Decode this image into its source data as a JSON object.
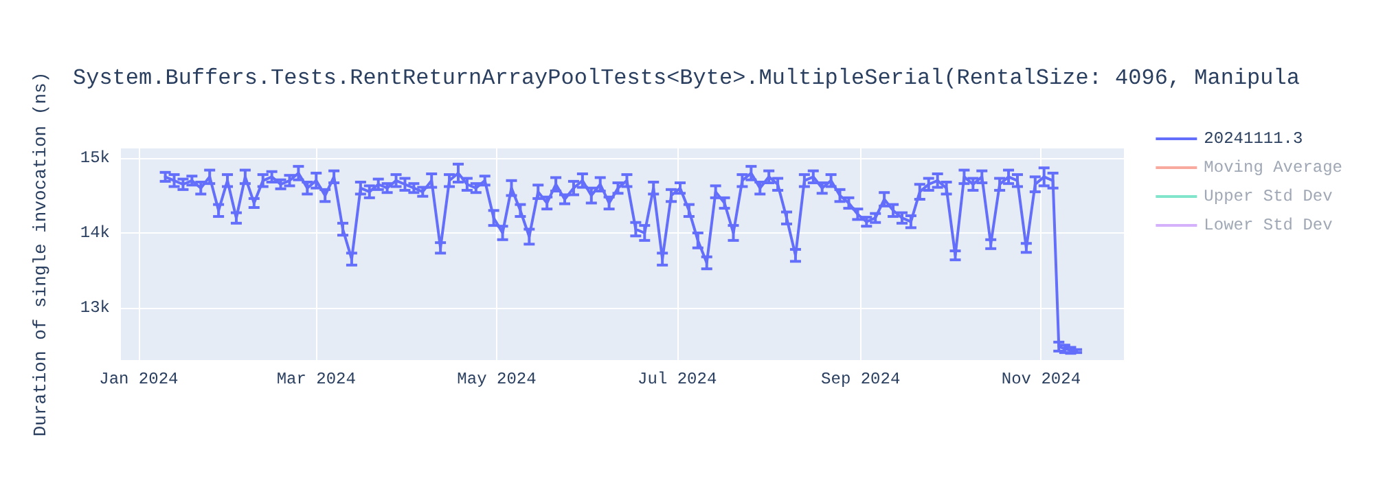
{
  "chart_data": {
    "type": "line",
    "title": "System.Buffers.Tests.RentReturnArrayPoolTests<Byte>.MultipleSerial(RentalSize: 4096, Manipula",
    "ylabel": "Duration of single invocation (ns)",
    "x": [
      "2024-01-10",
      "2024-01-13",
      "2024-01-16",
      "2024-01-19",
      "2024-01-22",
      "2024-01-25",
      "2024-01-28",
      "2024-01-31",
      "2024-02-03",
      "2024-02-06",
      "2024-02-09",
      "2024-02-12",
      "2024-02-15",
      "2024-02-18",
      "2024-02-21",
      "2024-02-24",
      "2024-02-27",
      "2024-03-01",
      "2024-03-04",
      "2024-03-07",
      "2024-03-10",
      "2024-03-13",
      "2024-03-16",
      "2024-03-19",
      "2024-03-22",
      "2024-03-25",
      "2024-03-28",
      "2024-03-31",
      "2024-04-03",
      "2024-04-06",
      "2024-04-09",
      "2024-04-12",
      "2024-04-15",
      "2024-04-18",
      "2024-04-21",
      "2024-04-24",
      "2024-04-27",
      "2024-04-30",
      "2024-05-03",
      "2024-05-06",
      "2024-05-09",
      "2024-05-12",
      "2024-05-15",
      "2024-05-18",
      "2024-05-21",
      "2024-05-24",
      "2024-05-27",
      "2024-05-30",
      "2024-06-02",
      "2024-06-05",
      "2024-06-08",
      "2024-06-11",
      "2024-06-14",
      "2024-06-17",
      "2024-06-20",
      "2024-06-23",
      "2024-06-26",
      "2024-06-29",
      "2024-07-02",
      "2024-07-05",
      "2024-07-08",
      "2024-07-11",
      "2024-07-14",
      "2024-07-17",
      "2024-07-20",
      "2024-07-23",
      "2024-07-26",
      "2024-07-29",
      "2024-08-01",
      "2024-08-04",
      "2024-08-07",
      "2024-08-10",
      "2024-08-13",
      "2024-08-16",
      "2024-08-19",
      "2024-08-22",
      "2024-08-25",
      "2024-08-28",
      "2024-08-31",
      "2024-09-03",
      "2024-09-06",
      "2024-09-09",
      "2024-09-12",
      "2024-09-15",
      "2024-09-18",
      "2024-09-21",
      "2024-09-24",
      "2024-09-27",
      "2024-09-30",
      "2024-10-03",
      "2024-10-06",
      "2024-10-09",
      "2024-10-12",
      "2024-10-15",
      "2024-10-18",
      "2024-10-21",
      "2024-10-24",
      "2024-10-27",
      "2024-10-30",
      "2024-11-02",
      "2024-11-05",
      "2024-11-07",
      "2024-11-09",
      "2024-11-11",
      "2024-11-13"
    ],
    "series": [
      {
        "name": "20241111.3",
        "color": "#636efa",
        "values": [
          14750,
          14700,
          14650,
          14700,
          14600,
          14750,
          14300,
          14700,
          14200,
          14750,
          14400,
          14700,
          14750,
          14650,
          14700,
          14800,
          14600,
          14700,
          14500,
          14750,
          14050,
          13650,
          14600,
          14550,
          14650,
          14600,
          14700,
          14650,
          14600,
          14550,
          14700,
          13800,
          14700,
          14800,
          14650,
          14600,
          14700,
          14200,
          14000,
          14600,
          14300,
          13950,
          14550,
          14400,
          14650,
          14450,
          14600,
          14700,
          14500,
          14650,
          14400,
          14600,
          14700,
          14050,
          14000,
          14600,
          13650,
          14500,
          14600,
          14300,
          13900,
          13600,
          14550,
          14400,
          14000,
          14700,
          14800,
          14600,
          14750,
          14650,
          14200,
          13700,
          14700,
          14750,
          14600,
          14700,
          14500,
          14400,
          14250,
          14150,
          14200,
          14450,
          14300,
          14200,
          14150,
          14550,
          14650,
          14700,
          14600,
          13700,
          14750,
          14650,
          14750,
          13850,
          14650,
          14750,
          14700,
          13800,
          14650,
          14750,
          14700,
          12480,
          12450,
          12430,
          12420
        ],
        "errors": [
          60,
          80,
          70,
          60,
          80,
          90,
          80,
          80,
          70,
          90,
          60,
          80,
          70,
          60,
          70,
          90,
          80,
          100,
          80,
          80,
          80,
          80,
          80,
          80,
          70,
          60,
          80,
          80,
          60,
          60,
          90,
          70,
          80,
          120,
          80,
          60,
          60,
          100,
          90,
          100,
          80,
          100,
          90,
          80,
          90,
          60,
          90,
          90,
          100,
          90,
          80,
          70,
          80,
          90,
          100,
          80,
          80,
          80,
          70,
          80,
          100,
          80,
          80,
          70,
          100,
          80,
          90,
          80,
          80,
          80,
          80,
          80,
          80,
          80,
          70,
          80,
          80,
          70,
          70,
          60,
          60,
          90,
          80,
          70,
          80,
          100,
          80,
          90,
          80,
          60,
          90,
          80,
          80,
          60,
          80,
          90,
          80,
          60,
          100,
          120,
          100,
          60,
          50,
          40,
          20
        ]
      },
      {
        "name": "Moving Average",
        "color": "#f7aa9d",
        "values": [
          null,
          null,
          null,
          null,
          null,
          null,
          null,
          null,
          null,
          null,
          null,
          null,
          null,
          null,
          null,
          null,
          null,
          null,
          null,
          null,
          null,
          null,
          null,
          null,
          null,
          null,
          null,
          null,
          null,
          null,
          null,
          null,
          null,
          null,
          null,
          null,
          null,
          null,
          null,
          null,
          null,
          null,
          null,
          null,
          null,
          null,
          null,
          null,
          null,
          null,
          null,
          null,
          null,
          null,
          null,
          null,
          null,
          null,
          null,
          null,
          null,
          null,
          null,
          null,
          null,
          null,
          null,
          null,
          null,
          null,
          null,
          null,
          null,
          null,
          null,
          null,
          null,
          null,
          null,
          null,
          null,
          null,
          null,
          null,
          null,
          null,
          null,
          null,
          null,
          null,
          null,
          null,
          null,
          null,
          null,
          null,
          null,
          null,
          null,
          null,
          null,
          null,
          null,
          null,
          null
        ]
      },
      {
        "name": "Upper Std Dev",
        "color": "#80e5ca",
        "values": [
          null,
          null,
          null,
          null,
          null,
          null,
          null,
          null,
          null,
          null,
          null,
          null,
          null,
          null,
          null,
          null,
          null,
          null,
          null,
          null,
          null,
          null,
          null,
          null,
          null,
          null,
          null,
          null,
          null,
          null,
          null,
          null,
          null,
          null,
          null,
          null,
          null,
          null,
          null,
          null,
          null,
          null,
          null,
          null,
          null,
          null,
          null,
          null,
          null,
          null,
          null,
          null,
          null,
          null,
          null,
          null,
          null,
          null,
          null,
          null,
          null,
          null,
          null,
          null,
          null,
          null,
          null,
          null,
          null,
          null,
          null,
          null,
          null,
          null,
          null,
          null,
          null,
          null,
          null,
          null,
          null,
          null,
          null,
          null,
          null,
          null,
          null,
          null,
          null,
          null,
          null,
          null,
          null,
          null,
          null,
          null,
          null,
          null,
          null,
          null,
          null,
          null,
          null,
          null,
          null
        ]
      },
      {
        "name": "Lower Std Dev",
        "color": "#d5b1fc",
        "values": [
          null,
          null,
          null,
          null,
          null,
          null,
          null,
          null,
          null,
          null,
          null,
          null,
          null,
          null,
          null,
          null,
          null,
          null,
          null,
          null,
          null,
          null,
          null,
          null,
          null,
          null,
          null,
          null,
          null,
          null,
          null,
          null,
          null,
          null,
          null,
          null,
          null,
          null,
          null,
          null,
          null,
          null,
          null,
          null,
          null,
          null,
          null,
          null,
          null,
          null,
          null,
          null,
          null,
          null,
          null,
          null,
          null,
          null,
          null,
          null,
          null,
          null,
          null,
          null,
          null,
          null,
          null,
          null,
          null,
          null,
          null,
          null,
          null,
          null,
          null,
          null,
          null,
          null,
          null,
          null,
          null,
          null,
          null,
          null,
          null,
          null,
          null,
          null,
          null,
          null,
          null,
          null,
          null,
          null,
          null,
          null,
          null,
          null,
          null,
          null,
          null,
          null,
          null,
          null,
          null
        ]
      }
    ],
    "xlim": [
      "2023-12-26",
      "2024-11-29"
    ],
    "xticks": [
      {
        "value": "2024-01-01",
        "label": "Jan 2024"
      },
      {
        "value": "2024-03-01",
        "label": "Mar 2024"
      },
      {
        "value": "2024-05-01",
        "label": "May 2024"
      },
      {
        "value": "2024-07-01",
        "label": "Jul 2024"
      },
      {
        "value": "2024-09-01",
        "label": "Sep 2024"
      },
      {
        "value": "2024-11-01",
        "label": "Nov 2024"
      }
    ],
    "ylim": [
      12300,
      15130
    ],
    "yticks": [
      {
        "value": 13000,
        "label": "13k"
      },
      {
        "value": 14000,
        "label": "14k"
      },
      {
        "value": 15000,
        "label": "15k"
      }
    ],
    "grid": true,
    "legend": "top right",
    "marker": "none",
    "line_style": "solid"
  }
}
